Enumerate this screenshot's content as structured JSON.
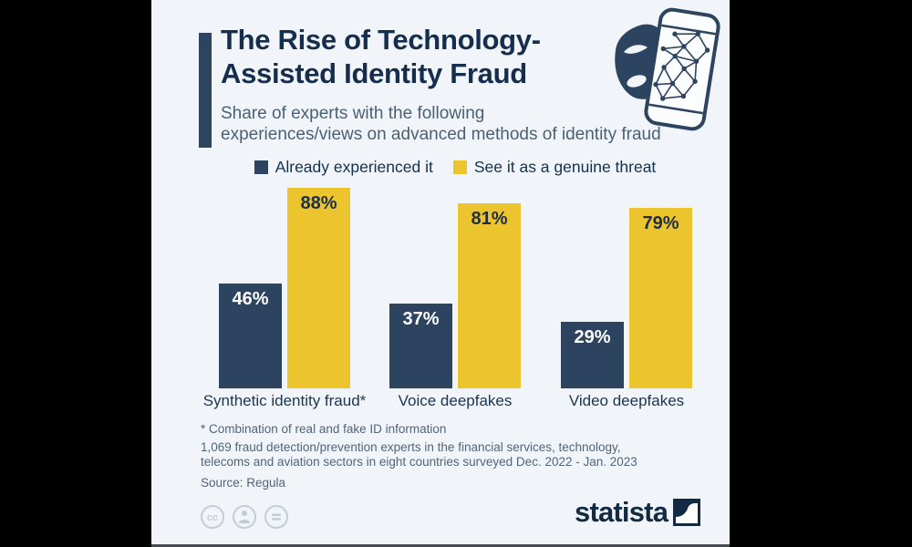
{
  "page": {
    "background": "#000000",
    "canvas_background": "#f1f5f9"
  },
  "header": {
    "title_line1": "The Rise of Technology-",
    "title_line2": "Assisted Identity Fraud",
    "subtitle_line1": "Share of experts with the following",
    "subtitle_line2": "experiences/views on advanced methods of identity fraud"
  },
  "legend": [
    {
      "label": "Already experienced it",
      "color": "#2d4460"
    },
    {
      "label": "See it as a genuine threat",
      "color": "#ecc42e"
    }
  ],
  "chart_data": {
    "type": "bar",
    "title": "The Rise of Technology-Assisted Identity Fraud",
    "subtitle": "Share of experts with the following experiences/views on advanced methods of identity fraud",
    "categories": [
      "Synthetic identity fraud*",
      "Voice deepfakes",
      "Video deepfakes"
    ],
    "series": [
      {
        "name": "Already experienced it",
        "color": "#2d4460",
        "label_color": "#ffffff",
        "values": [
          46,
          37,
          29
        ]
      },
      {
        "name": "See it as a genuine threat",
        "color": "#ecc42e",
        "label_color": "#1f2f42",
        "values": [
          88,
          81,
          79
        ]
      }
    ],
    "value_suffix": "%",
    "ylim": [
      0,
      100
    ],
    "grid": false,
    "legend_position": "top",
    "xlabel": "",
    "ylabel": ""
  },
  "footnote": {
    "lines": [
      "* Combination of real and fake ID information",
      "1,069 fraud detection/prevention experts in the financial services, technology,",
      "telecoms and aviation sectors in eight countries surveyed Dec. 2022 - Jan. 2023"
    ],
    "source": "Source: Regula"
  },
  "footer": {
    "brand": "statista",
    "license_icons": [
      "cc-icon",
      "by-person-icon",
      "nd-equals-icon"
    ]
  },
  "icons": {
    "header_art": "mask-and-phone-face-mesh-icon",
    "colors": {
      "navy": "#2d4460",
      "yellow": "#ecc42e",
      "grey": "#c3cdd6"
    }
  }
}
